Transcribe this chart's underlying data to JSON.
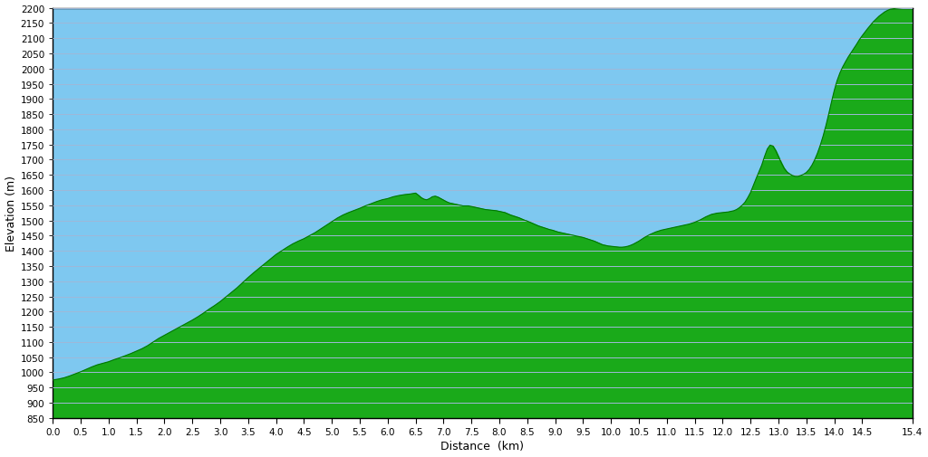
{
  "xlabel": "Distance  (km)",
  "ylabel": "Elevation (m)",
  "xlim": [
    0,
    15.4
  ],
  "ylim": [
    850,
    2200
  ],
  "xticks": [
    0.0,
    0.5,
    1.0,
    1.5,
    2.0,
    2.5,
    3.0,
    3.5,
    4.0,
    4.5,
    5.0,
    5.5,
    6.0,
    6.5,
    7.0,
    7.5,
    8.0,
    8.5,
    9.0,
    9.5,
    10.0,
    10.5,
    11.0,
    11.5,
    12.0,
    12.5,
    13.0,
    13.5,
    14.0,
    14.5,
    15.4
  ],
  "yticks": [
    850,
    900,
    950,
    1000,
    1050,
    1100,
    1150,
    1200,
    1250,
    1300,
    1350,
    1400,
    1450,
    1500,
    1550,
    1600,
    1650,
    1700,
    1750,
    1800,
    1850,
    1900,
    1950,
    2000,
    2050,
    2100,
    2150,
    2200
  ],
  "fill_color": "#1aaa1a",
  "sky_color": "#7ec8f0",
  "line_color": "#007700",
  "background_color": "#ffffff",
  "grid_color": "#a0b8d8",
  "profile": [
    [
      0.0,
      975
    ],
    [
      0.1,
      978
    ],
    [
      0.2,
      982
    ],
    [
      0.3,
      988
    ],
    [
      0.4,
      995
    ],
    [
      0.5,
      1002
    ],
    [
      0.6,
      1010
    ],
    [
      0.7,
      1018
    ],
    [
      0.8,
      1025
    ],
    [
      0.9,
      1030
    ],
    [
      1.0,
      1035
    ],
    [
      1.1,
      1042
    ],
    [
      1.2,
      1048
    ],
    [
      1.3,
      1055
    ],
    [
      1.4,
      1062
    ],
    [
      1.5,
      1070
    ],
    [
      1.6,
      1078
    ],
    [
      1.7,
      1088
    ],
    [
      1.8,
      1100
    ],
    [
      1.9,
      1112
    ],
    [
      2.0,
      1122
    ],
    [
      2.1,
      1132
    ],
    [
      2.2,
      1142
    ],
    [
      2.3,
      1152
    ],
    [
      2.4,
      1162
    ],
    [
      2.5,
      1172
    ],
    [
      2.6,
      1183
    ],
    [
      2.7,
      1195
    ],
    [
      2.8,
      1208
    ],
    [
      2.9,
      1220
    ],
    [
      3.0,
      1233
    ],
    [
      3.1,
      1248
    ],
    [
      3.2,
      1263
    ],
    [
      3.3,
      1278
    ],
    [
      3.4,
      1295
    ],
    [
      3.5,
      1312
    ],
    [
      3.6,
      1328
    ],
    [
      3.7,
      1343
    ],
    [
      3.8,
      1358
    ],
    [
      3.9,
      1373
    ],
    [
      4.0,
      1388
    ],
    [
      4.1,
      1400
    ],
    [
      4.2,
      1412
    ],
    [
      4.3,
      1423
    ],
    [
      4.4,
      1432
    ],
    [
      4.5,
      1440
    ],
    [
      4.6,
      1450
    ],
    [
      4.7,
      1460
    ],
    [
      4.8,
      1472
    ],
    [
      4.9,
      1484
    ],
    [
      5.0,
      1496
    ],
    [
      5.1,
      1508
    ],
    [
      5.2,
      1518
    ],
    [
      5.3,
      1526
    ],
    [
      5.4,
      1533
    ],
    [
      5.5,
      1540
    ],
    [
      5.6,
      1548
    ],
    [
      5.7,
      1555
    ],
    [
      5.8,
      1562
    ],
    [
      5.9,
      1568
    ],
    [
      6.0,
      1572
    ],
    [
      6.1,
      1578
    ],
    [
      6.2,
      1582
    ],
    [
      6.3,
      1585
    ],
    [
      6.4,
      1587
    ],
    [
      6.5,
      1590
    ],
    [
      6.55,
      1583
    ],
    [
      6.6,
      1575
    ],
    [
      6.65,
      1570
    ],
    [
      6.7,
      1568
    ],
    [
      6.75,
      1572
    ],
    [
      6.8,
      1578
    ],
    [
      6.85,
      1580
    ],
    [
      6.9,
      1577
    ],
    [
      6.95,
      1572
    ],
    [
      7.0,
      1567
    ],
    [
      7.05,
      1562
    ],
    [
      7.1,
      1558
    ],
    [
      7.15,
      1556
    ],
    [
      7.2,
      1554
    ],
    [
      7.25,
      1552
    ],
    [
      7.3,
      1550
    ],
    [
      7.35,
      1548
    ],
    [
      7.4,
      1548
    ],
    [
      7.45,
      1548
    ],
    [
      7.5,
      1546
    ],
    [
      7.55,
      1544
    ],
    [
      7.6,
      1542
    ],
    [
      7.65,
      1540
    ],
    [
      7.7,
      1538
    ],
    [
      7.75,
      1536
    ],
    [
      7.8,
      1535
    ],
    [
      7.85,
      1534
    ],
    [
      7.9,
      1533
    ],
    [
      7.95,
      1532
    ],
    [
      8.0,
      1530
    ],
    [
      8.05,
      1528
    ],
    [
      8.1,
      1526
    ],
    [
      8.15,
      1522
    ],
    [
      8.2,
      1518
    ],
    [
      8.25,
      1515
    ],
    [
      8.3,
      1512
    ],
    [
      8.35,
      1509
    ],
    [
      8.4,
      1505
    ],
    [
      8.45,
      1501
    ],
    [
      8.5,
      1498
    ],
    [
      8.55,
      1494
    ],
    [
      8.6,
      1490
    ],
    [
      8.65,
      1486
    ],
    [
      8.7,
      1482
    ],
    [
      8.75,
      1479
    ],
    [
      8.8,
      1476
    ],
    [
      8.85,
      1473
    ],
    [
      8.9,
      1470
    ],
    [
      8.95,
      1468
    ],
    [
      9.0,
      1465
    ],
    [
      9.05,
      1462
    ],
    [
      9.1,
      1460
    ],
    [
      9.15,
      1458
    ],
    [
      9.2,
      1456
    ],
    [
      9.25,
      1454
    ],
    [
      9.3,
      1452
    ],
    [
      9.35,
      1450
    ],
    [
      9.4,
      1448
    ],
    [
      9.45,
      1446
    ],
    [
      9.5,
      1444
    ],
    [
      9.55,
      1441
    ],
    [
      9.6,
      1438
    ],
    [
      9.65,
      1435
    ],
    [
      9.7,
      1432
    ],
    [
      9.75,
      1428
    ],
    [
      9.8,
      1424
    ],
    [
      9.85,
      1420
    ],
    [
      9.9,
      1418
    ],
    [
      9.95,
      1416
    ],
    [
      10.0,
      1415
    ],
    [
      10.05,
      1414
    ],
    [
      10.1,
      1413
    ],
    [
      10.15,
      1412
    ],
    [
      10.2,
      1412
    ],
    [
      10.25,
      1413
    ],
    [
      10.3,
      1415
    ],
    [
      10.35,
      1418
    ],
    [
      10.4,
      1422
    ],
    [
      10.45,
      1427
    ],
    [
      10.5,
      1432
    ],
    [
      10.55,
      1438
    ],
    [
      10.6,
      1444
    ],
    [
      10.65,
      1449
    ],
    [
      10.7,
      1454
    ],
    [
      10.75,
      1458
    ],
    [
      10.8,
      1462
    ],
    [
      10.85,
      1465
    ],
    [
      10.9,
      1468
    ],
    [
      10.95,
      1470
    ],
    [
      11.0,
      1472
    ],
    [
      11.05,
      1474
    ],
    [
      11.1,
      1476
    ],
    [
      11.15,
      1478
    ],
    [
      11.2,
      1480
    ],
    [
      11.25,
      1482
    ],
    [
      11.3,
      1484
    ],
    [
      11.35,
      1486
    ],
    [
      11.4,
      1488
    ],
    [
      11.45,
      1491
    ],
    [
      11.5,
      1494
    ],
    [
      11.55,
      1498
    ],
    [
      11.6,
      1502
    ],
    [
      11.65,
      1507
    ],
    [
      11.7,
      1512
    ],
    [
      11.75,
      1516
    ],
    [
      11.8,
      1520
    ],
    [
      11.85,
      1522
    ],
    [
      11.9,
      1524
    ],
    [
      11.95,
      1525
    ],
    [
      12.0,
      1526
    ],
    [
      12.05,
      1527
    ],
    [
      12.1,
      1528
    ],
    [
      12.15,
      1530
    ],
    [
      12.2,
      1532
    ],
    [
      12.25,
      1536
    ],
    [
      12.3,
      1542
    ],
    [
      12.35,
      1550
    ],
    [
      12.4,
      1560
    ],
    [
      12.45,
      1575
    ],
    [
      12.5,
      1592
    ],
    [
      12.55,
      1615
    ],
    [
      12.6,
      1638
    ],
    [
      12.65,
      1660
    ],
    [
      12.7,
      1682
    ],
    [
      12.75,
      1710
    ],
    [
      12.8,
      1735
    ],
    [
      12.85,
      1748
    ],
    [
      12.9,
      1745
    ],
    [
      12.95,
      1730
    ],
    [
      13.0,
      1710
    ],
    [
      13.05,
      1690
    ],
    [
      13.1,
      1672
    ],
    [
      13.15,
      1660
    ],
    [
      13.2,
      1653
    ],
    [
      13.25,
      1648
    ],
    [
      13.3,
      1645
    ],
    [
      13.35,
      1645
    ],
    [
      13.4,
      1648
    ],
    [
      13.45,
      1652
    ],
    [
      13.5,
      1658
    ],
    [
      13.55,
      1668
    ],
    [
      13.6,
      1682
    ],
    [
      13.65,
      1700
    ],
    [
      13.7,
      1722
    ],
    [
      13.75,
      1748
    ],
    [
      13.8,
      1778
    ],
    [
      13.85,
      1812
    ],
    [
      13.9,
      1850
    ],
    [
      13.95,
      1890
    ],
    [
      14.0,
      1928
    ],
    [
      14.05,
      1960
    ],
    [
      14.1,
      1985
    ],
    [
      14.15,
      2005
    ],
    [
      14.2,
      2022
    ],
    [
      14.25,
      2038
    ],
    [
      14.3,
      2052
    ],
    [
      14.35,
      2066
    ],
    [
      14.4,
      2080
    ],
    [
      14.45,
      2095
    ],
    [
      14.5,
      2108
    ],
    [
      14.55,
      2120
    ],
    [
      14.6,
      2132
    ],
    [
      14.65,
      2143
    ],
    [
      14.7,
      2154
    ],
    [
      14.75,
      2163
    ],
    [
      14.8,
      2172
    ],
    [
      14.85,
      2179
    ],
    [
      14.9,
      2186
    ],
    [
      14.95,
      2191
    ],
    [
      15.0,
      2195
    ],
    [
      15.1,
      2198
    ],
    [
      15.2,
      2200
    ],
    [
      15.3,
      2201
    ],
    [
      15.4,
      2202
    ]
  ]
}
